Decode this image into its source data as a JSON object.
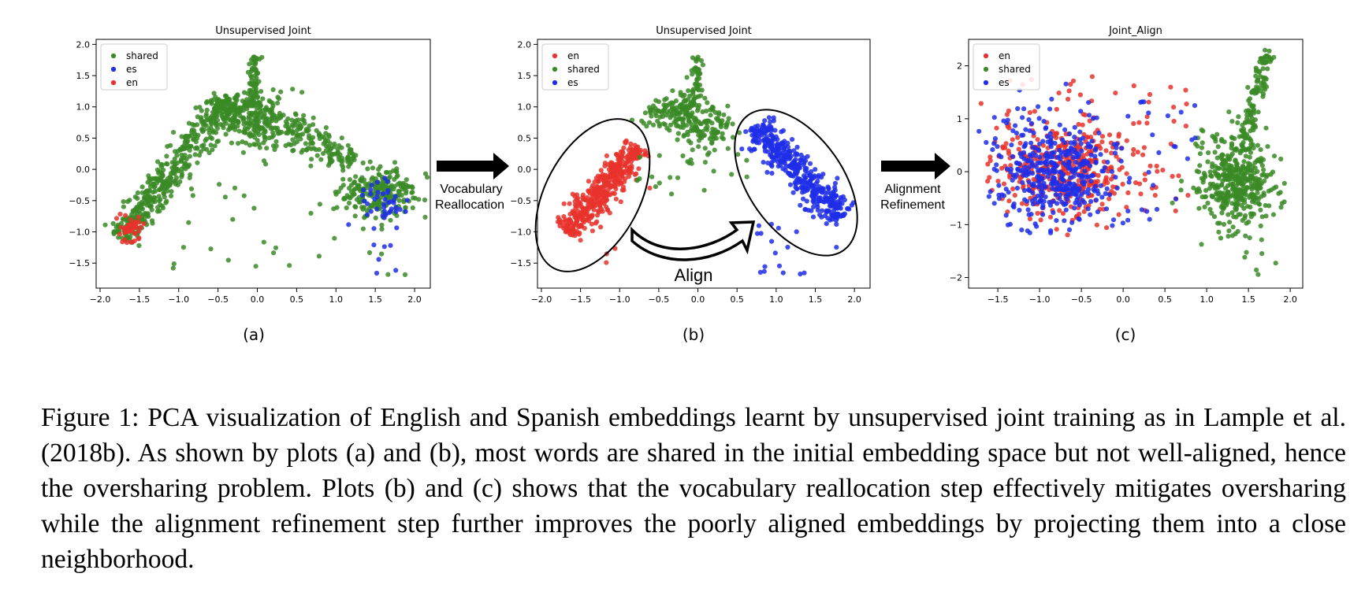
{
  "figure": {
    "panels": [
      {
        "label": "(a)"
      },
      {
        "label": "(b)"
      },
      {
        "label": "(c)"
      }
    ],
    "arrows": [
      {
        "line1": "Vocabulary",
        "line2": "Reallocation"
      },
      {
        "line1": "Alignment",
        "line2": "Refinement"
      }
    ],
    "align_label": "Align"
  },
  "colors": {
    "en": "#e8322b",
    "es": "#1f2ee8",
    "shared": "#3a8a26"
  },
  "chart_data": [
    {
      "type": "scatter",
      "title": "Unsupervised Joint",
      "xlim": [
        -2.05,
        2.2
      ],
      "ylim": [
        -1.9,
        2.08
      ],
      "xticks": [
        -2.0,
        -1.5,
        -1.0,
        -0.5,
        0.0,
        0.5,
        1.0,
        1.5,
        2.0
      ],
      "xtick_labels": [
        "−2.0",
        "−1.5",
        "−1.0",
        "−0.5",
        "0.0",
        "0.5",
        "1.0",
        "1.5",
        "2.0"
      ],
      "yticks": [
        -1.5,
        -1.0,
        -0.5,
        0.0,
        0.5,
        1.0,
        1.5,
        2.0
      ],
      "ytick_labels": [
        "−1.5",
        "−1.0",
        "−0.5",
        "0.0",
        "0.5",
        "1.0",
        "1.5",
        "2.0"
      ],
      "legend_position": "top-left",
      "legend": [
        "shared",
        "es",
        "en"
      ],
      "series": [
        {
          "name": "shared",
          "clusters": [
            {
              "type": "line",
              "from": [
                -1.75,
                -1.1
              ],
              "to": [
                -1.0,
                0.15
              ],
              "n": 260,
              "spread": 0.1
            },
            {
              "type": "line",
              "from": [
                -1.0,
                0.15
              ],
              "to": [
                -0.45,
                0.9
              ],
              "n": 120,
              "spread": 0.12
            },
            {
              "type": "blob",
              "center": [
                -0.4,
                1.0
              ],
              "sd": [
                0.15,
                0.1
              ],
              "n": 130
            },
            {
              "type": "blob",
              "center": [
                0.0,
                0.75
              ],
              "sd": [
                0.25,
                0.2
              ],
              "n": 200
            },
            {
              "type": "line",
              "from": [
                -0.05,
                1.0
              ],
              "to": [
                -0.02,
                1.82
              ],
              "n": 70,
              "spread": 0.04
            },
            {
              "type": "line",
              "from": [
                0.3,
                0.75
              ],
              "to": [
                1.2,
                0.1
              ],
              "n": 140,
              "spread": 0.12
            },
            {
              "type": "blob",
              "center": [
                1.55,
                -0.35
              ],
              "sd": [
                0.25,
                0.22
              ],
              "n": 230
            },
            {
              "type": "uniform",
              "x": [
                -1.4,
                1.9
              ],
              "y": [
                -1.7,
                0.2
              ],
              "n": 35
            }
          ]
        },
        {
          "name": "es",
          "clusters": [
            {
              "type": "blob",
              "center": [
                1.6,
                -0.5
              ],
              "sd": [
                0.18,
                0.15
              ],
              "n": 40
            },
            {
              "type": "uniform",
              "x": [
                1.3,
                1.9
              ],
              "y": [
                -1.7,
                -0.9
              ],
              "n": 8
            }
          ]
        },
        {
          "name": "en",
          "clusters": [
            {
              "type": "blob",
              "center": [
                -1.62,
                -0.95
              ],
              "sd": [
                0.08,
                0.12
              ],
              "n": 45
            }
          ]
        }
      ]
    },
    {
      "type": "scatter",
      "title": "Unsupervised Joint",
      "xlim": [
        -2.05,
        2.2
      ],
      "ylim": [
        -1.9,
        2.08
      ],
      "xticks": [
        -2.0,
        -1.5,
        -1.0,
        -0.5,
        0.0,
        0.5,
        1.0,
        1.5,
        2.0
      ],
      "xtick_labels": [
        "−2.0",
        "−1.5",
        "−1.0",
        "−0.5",
        "0.0",
        "0.5",
        "1.0",
        "1.5",
        "2.0"
      ],
      "yticks": [
        -1.5,
        -1.0,
        -0.5,
        0.0,
        0.5,
        1.0,
        1.5,
        2.0
      ],
      "ytick_labels": [
        "−1.5",
        "−1.0",
        "−0.5",
        "0.0",
        "0.5",
        "1.0",
        "1.5",
        "2.0"
      ],
      "legend_position": "top-left",
      "legend": [
        "en",
        "shared",
        "es"
      ],
      "series": [
        {
          "name": "en",
          "clusters": [
            {
              "type": "line",
              "from": [
                -1.7,
                -1.0
              ],
              "to": [
                -0.75,
                0.35
              ],
              "n": 420,
              "spread": 0.1
            },
            {
              "type": "uniform",
              "x": [
                -1.3,
                -0.6
              ],
              "y": [
                -1.6,
                0.1
              ],
              "n": 12
            }
          ]
        },
        {
          "name": "shared",
          "clusters": [
            {
              "type": "blob",
              "center": [
                -0.3,
                0.95
              ],
              "sd": [
                0.18,
                0.13
              ],
              "n": 110
            },
            {
              "type": "blob",
              "center": [
                0.05,
                0.65
              ],
              "sd": [
                0.22,
                0.18
              ],
              "n": 120
            },
            {
              "type": "line",
              "from": [
                -0.05,
                1.0
              ],
              "to": [
                -0.02,
                1.8
              ],
              "n": 55,
              "spread": 0.04
            },
            {
              "type": "uniform",
              "x": [
                -0.8,
                0.7
              ],
              "y": [
                -0.4,
                0.3
              ],
              "n": 20
            }
          ]
        },
        {
          "name": "es",
          "clusters": [
            {
              "type": "line",
              "from": [
                0.7,
                0.7
              ],
              "to": [
                1.85,
                -0.75
              ],
              "n": 420,
              "spread": 0.12
            },
            {
              "type": "uniform",
              "x": [
                0.7,
                1.9
              ],
              "y": [
                -1.7,
                -0.8
              ],
              "n": 18
            }
          ]
        }
      ]
    },
    {
      "type": "scatter",
      "title": "Joint_Align",
      "xlim": [
        -1.85,
        2.15
      ],
      "ylim": [
        -2.2,
        2.5
      ],
      "xticks": [
        -1.5,
        -1.0,
        -0.5,
        0.0,
        0.5,
        1.0,
        1.5,
        2.0
      ],
      "xtick_labels": [
        "−1.5",
        "−1.0",
        "−0.5",
        "0.0",
        "0.5",
        "1.0",
        "1.5",
        "2.0"
      ],
      "yticks": [
        -2,
        -1,
        0,
        1,
        2
      ],
      "ytick_labels": [
        "−2",
        "−1",
        "0",
        "1",
        "2"
      ],
      "legend_position": "top-left",
      "legend": [
        "en",
        "shared",
        "es"
      ],
      "series": [
        {
          "name": "shared",
          "clusters": [
            {
              "type": "blob",
              "center": [
                1.35,
                -0.2
              ],
              "sd": [
                0.22,
                0.45
              ],
              "n": 420
            },
            {
              "type": "line",
              "from": [
                1.45,
                0.5
              ],
              "to": [
                1.72,
                2.3
              ],
              "n": 110,
              "spread": 0.05
            },
            {
              "type": "uniform",
              "x": [
                0.9,
                1.9
              ],
              "y": [
                -2.0,
                1.2
              ],
              "n": 25
            }
          ]
        },
        {
          "name": "en",
          "clusters": [
            {
              "type": "blob",
              "center": [
                -0.7,
                0.05
              ],
              "sd": [
                0.45,
                0.4
              ],
              "n": 380
            },
            {
              "type": "uniform",
              "x": [
                -1.5,
                0.8
              ],
              "y": [
                -1.1,
                1.8
              ],
              "n": 60
            }
          ]
        },
        {
          "name": "es",
          "clusters": [
            {
              "type": "blob",
              "center": [
                -0.85,
                0.0
              ],
              "sd": [
                0.35,
                0.45
              ],
              "n": 380
            },
            {
              "type": "uniform",
              "x": [
                -1.6,
                0.9
              ],
              "y": [
                -1.1,
                1.8
              ],
              "n": 60
            }
          ]
        }
      ]
    }
  ],
  "caption": "Figure 1: PCA visualization of English and Spanish embeddings learnt by unsupervised joint training as in Lample et al. (2018b). As shown by plots (a) and (b), most words are shared in the initial embedding space but not well-aligned, hence the oversharing problem. Plots (b) and (c) shows that the vocabulary reallocation step effectively mitigates oversharing while the alignment refinement step further improves the poorly aligned embeddings by projecting them into a close neighborhood."
}
